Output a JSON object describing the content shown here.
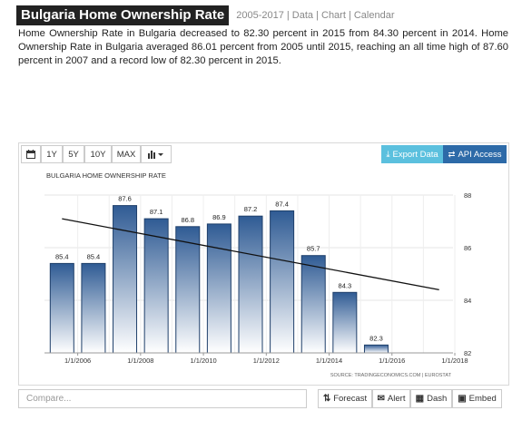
{
  "header": {
    "title": "Bulgaria Home Ownership Rate",
    "links": "2005-2017 | Data | Chart | Calendar"
  },
  "description": "Home Ownership Rate in Bulgaria decreased to 82.30 percent in 2015 from 84.30 percent in 2014. Home Ownership Rate in Bulgaria averaged 86.01 percent from 2005 until 2015, reaching an all time high of 87.60 percent in 2007 and a record low of 82.30 percent in 2015.",
  "toolbar": {
    "range_1y": "1Y",
    "range_5y": "5Y",
    "range_10y": "10Y",
    "range_max": "MAX",
    "export_label": "Export Data",
    "api_label": "API Access"
  },
  "bottom": {
    "compare_placeholder": "Compare...",
    "forecast_label": "Forecast",
    "alert_label": "Alert",
    "dash_label": "Dash",
    "embed_label": "Embed"
  },
  "colors": {
    "bar_top": "#2f5b94",
    "bar_bottom": "#ffffff",
    "export_bg": "#5bc0de",
    "api_bg": "#2d6aa8",
    "title_bg": "#222222"
  },
  "chart_data": {
    "type": "bar",
    "title": "BULGARIA HOME OWNERSHIP RATE",
    "source": "SOURCE: TRADINGECONOMICS.COM | EUROSTAT",
    "categories": [
      "2005",
      "2006",
      "2007",
      "2008",
      "2009",
      "2010",
      "2011",
      "2012",
      "2013",
      "2014",
      "2015"
    ],
    "values": [
      85.4,
      85.4,
      87.6,
      87.1,
      86.8,
      86.9,
      87.2,
      87.4,
      85.7,
      84.3,
      82.3
    ],
    "value_labels": [
      "85.4",
      "85.4",
      "87.6",
      "87.1",
      "86.8",
      "86.9",
      "87.2",
      "87.4",
      "85.7",
      "84.3",
      "82.3"
    ],
    "x_tick_labels": [
      "1/1/2006",
      "1/1/2008",
      "1/1/2010",
      "1/1/2012",
      "1/1/2014",
      "1/1/2016",
      "1/1/2018"
    ],
    "y_ticks": [
      82,
      84,
      86,
      88
    ],
    "y_tick_labels": [
      "82",
      "84",
      "86",
      "88"
    ],
    "ylim": [
      82,
      88
    ],
    "y_axis_position": "right",
    "trend_line": {
      "start_value": 87.1,
      "end_value": 84.4,
      "end_x": "2017"
    },
    "grid": true
  }
}
